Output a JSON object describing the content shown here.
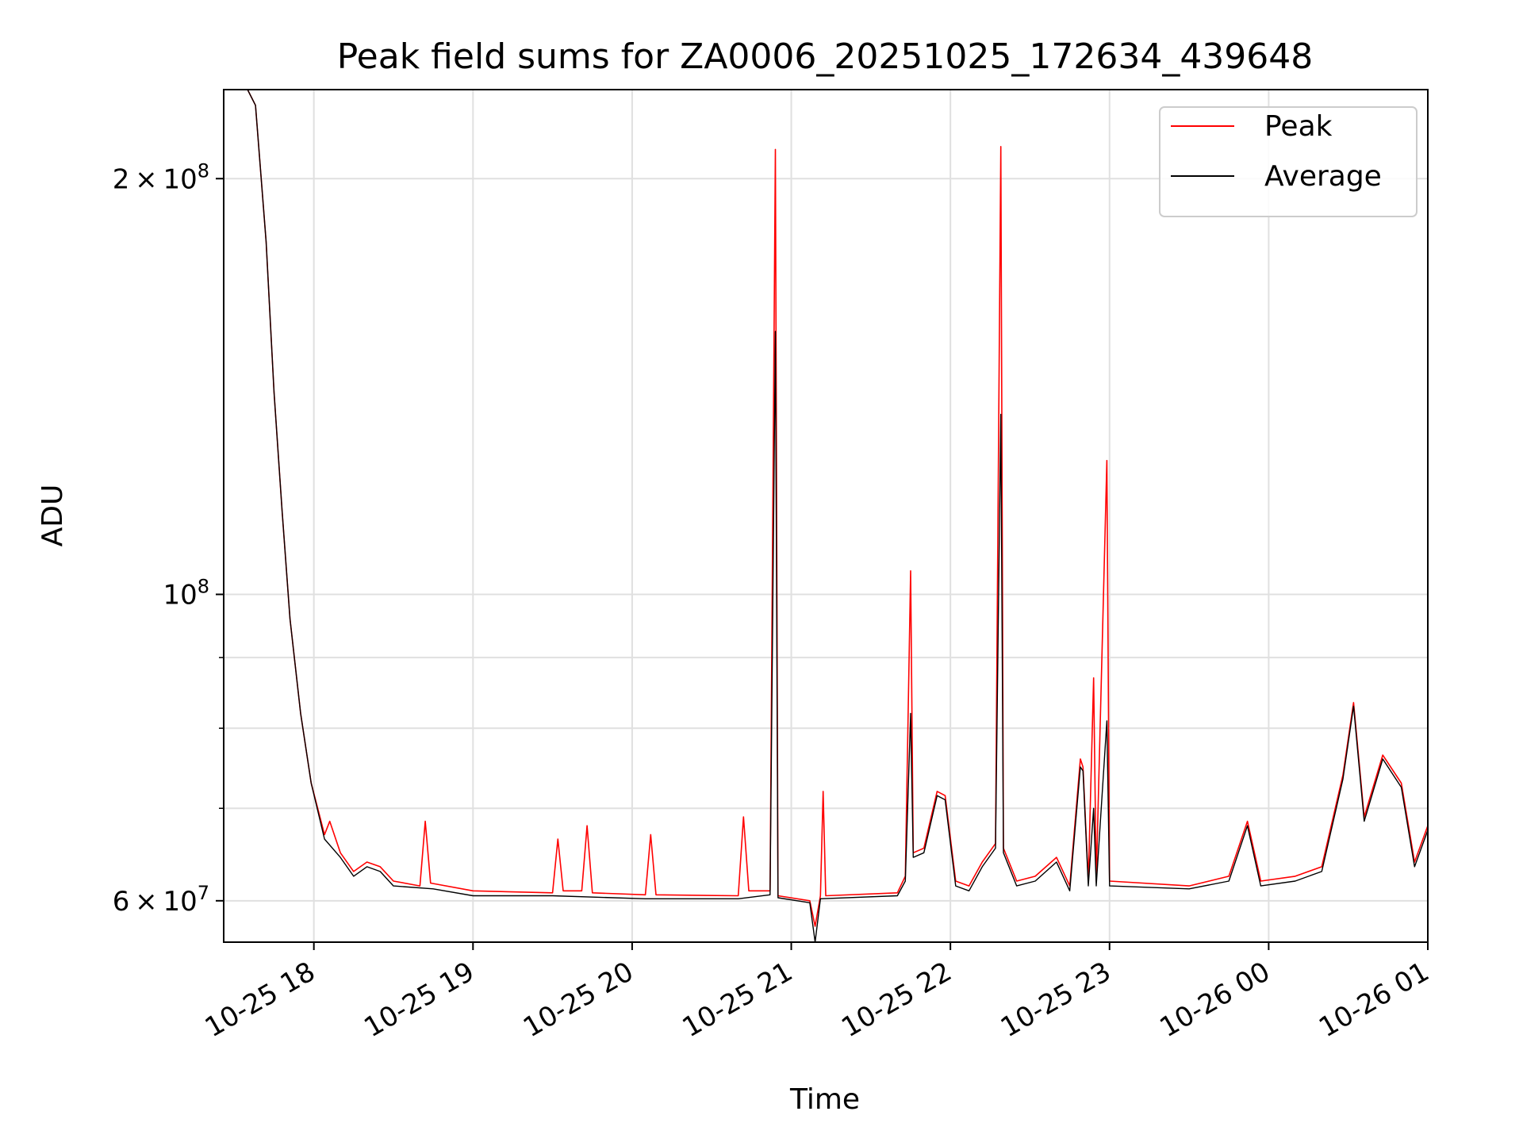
{
  "chart_data": {
    "type": "line",
    "title": "Peak field sums for ZA0006_20251025_172634_439648",
    "xlabel": "Time",
    "ylabel": "ADU",
    "yscale": "log",
    "xlim": [
      "2025-10-25 17:26",
      "2025-10-26 01:00"
    ],
    "ylim": [
      56000000,
      232000000
    ],
    "x_ticks": [
      {
        "t": "2025-10-25 18:00",
        "label": "10-25 18"
      },
      {
        "t": "2025-10-25 19:00",
        "label": "10-25 19"
      },
      {
        "t": "2025-10-25 20:00",
        "label": "10-25 20"
      },
      {
        "t": "2025-10-25 21:00",
        "label": "10-25 21"
      },
      {
        "t": "2025-10-25 22:00",
        "label": "10-25 22"
      },
      {
        "t": "2025-10-25 23:00",
        "label": "10-25 23"
      },
      {
        "t": "2025-10-26 00:00",
        "label": "10-26 00"
      },
      {
        "t": "2025-10-26 01:00",
        "label": "10-26 01"
      }
    ],
    "y_major_ticks": [
      {
        "value": 60000000,
        "base": "6",
        "exp": "7"
      },
      {
        "value": 100000000,
        "base": "",
        "exp": "8"
      },
      {
        "value": 200000000,
        "base": "2",
        "exp": "8"
      }
    ],
    "y_minor_ticks": [
      70000000,
      80000000,
      90000000
    ],
    "grid": true,
    "legend_position": "top-right",
    "series": [
      {
        "name": "Peak",
        "color": "#ff0000",
        "points": [
          [
            "2025-10-25 17:26",
            232000000
          ],
          [
            "2025-10-25 17:35",
            232000000
          ],
          [
            "2025-10-25 17:38",
            226000000
          ],
          [
            "2025-10-25 17:42",
            180000000
          ],
          [
            "2025-10-25 17:45",
            140000000
          ],
          [
            "2025-10-25 17:48",
            115000000
          ],
          [
            "2025-10-25 17:51",
            96000000
          ],
          [
            "2025-10-25 17:55",
            82000000
          ],
          [
            "2025-10-25 17:59",
            73000000
          ],
          [
            "2025-10-25 18:04",
            67000000
          ],
          [
            "2025-10-25 18:06",
            68500000
          ],
          [
            "2025-10-25 18:10",
            65000000
          ],
          [
            "2025-10-25 18:15",
            63000000
          ],
          [
            "2025-10-25 18:20",
            64000000
          ],
          [
            "2025-10-25 18:25",
            63500000
          ],
          [
            "2025-10-25 18:30",
            62000000
          ],
          [
            "2025-10-25 18:40",
            61500000
          ],
          [
            "2025-10-25 18:42",
            68500000
          ],
          [
            "2025-10-25 18:44",
            61800000
          ],
          [
            "2025-10-25 19:00",
            61000000
          ],
          [
            "2025-10-25 19:30",
            60800000
          ],
          [
            "2025-10-25 19:32",
            66500000
          ],
          [
            "2025-10-25 19:34",
            61000000
          ],
          [
            "2025-10-25 19:41",
            61000000
          ],
          [
            "2025-10-25 19:43",
            68000000
          ],
          [
            "2025-10-25 19:45",
            60800000
          ],
          [
            "2025-10-25 20:05",
            60600000
          ],
          [
            "2025-10-25 20:07",
            67000000
          ],
          [
            "2025-10-25 20:09",
            60600000
          ],
          [
            "2025-10-25 20:40",
            60500000
          ],
          [
            "2025-10-25 20:42",
            69000000
          ],
          [
            "2025-10-25 20:44",
            61000000
          ],
          [
            "2025-10-25 20:52",
            61000000
          ],
          [
            "2025-10-25 20:54",
            210000000
          ],
          [
            "2025-10-25 20:55",
            60500000
          ],
          [
            "2025-10-25 21:07",
            60000000
          ],
          [
            "2025-10-25 21:09",
            57500000
          ],
          [
            "2025-10-25 21:11",
            60500000
          ],
          [
            "2025-10-25 21:12",
            72000000
          ],
          [
            "2025-10-25 21:13",
            60500000
          ],
          [
            "2025-10-25 21:40",
            60800000
          ],
          [
            "2025-10-25 21:43",
            62500000
          ],
          [
            "2025-10-25 21:45",
            104000000
          ],
          [
            "2025-10-25 21:46",
            65000000
          ],
          [
            "2025-10-25 21:50",
            65500000
          ],
          [
            "2025-10-25 21:55",
            72000000
          ],
          [
            "2025-10-25 21:58",
            71500000
          ],
          [
            "2025-10-25 22:02",
            62000000
          ],
          [
            "2025-10-25 22:07",
            61500000
          ],
          [
            "2025-10-25 22:12",
            64000000
          ],
          [
            "2025-10-25 22:17",
            66000000
          ],
          [
            "2025-10-25 22:19",
            211000000
          ],
          [
            "2025-10-25 22:20",
            65500000
          ],
          [
            "2025-10-25 22:25",
            62000000
          ],
          [
            "2025-10-25 22:32",
            62500000
          ],
          [
            "2025-10-25 22:40",
            64500000
          ],
          [
            "2025-10-25 22:45",
            61500000
          ],
          [
            "2025-10-25 22:49",
            76000000
          ],
          [
            "2025-10-25 22:50",
            75000000
          ],
          [
            "2025-10-25 22:52",
            62000000
          ],
          [
            "2025-10-25 22:54",
            87000000
          ],
          [
            "2025-10-25 22:55",
            62000000
          ],
          [
            "2025-10-25 22:59",
            125000000
          ],
          [
            "2025-10-25 23:00",
            62000000
          ],
          [
            "2025-10-25 23:30",
            61500000
          ],
          [
            "2025-10-25 23:45",
            62500000
          ],
          [
            "2025-10-25 23:52",
            68500000
          ],
          [
            "2025-10-25 23:57",
            62000000
          ],
          [
            "2025-10-26 00:10",
            62500000
          ],
          [
            "2025-10-26 00:20",
            63500000
          ],
          [
            "2025-10-26 00:28",
            74000000
          ],
          [
            "2025-10-26 00:32",
            83500000
          ],
          [
            "2025-10-26 00:36",
            69000000
          ],
          [
            "2025-10-26 00:43",
            76500000
          ],
          [
            "2025-10-26 00:50",
            73000000
          ],
          [
            "2025-10-26 00:55",
            64000000
          ],
          [
            "2025-10-26 01:00",
            68000000
          ]
        ]
      },
      {
        "name": "Average",
        "color": "#000000",
        "points": [
          [
            "2025-10-25 17:26",
            232000000
          ],
          [
            "2025-10-25 17:35",
            232000000
          ],
          [
            "2025-10-25 17:38",
            226000000
          ],
          [
            "2025-10-25 17:42",
            180000000
          ],
          [
            "2025-10-25 17:45",
            140000000
          ],
          [
            "2025-10-25 17:48",
            115000000
          ],
          [
            "2025-10-25 17:51",
            96000000
          ],
          [
            "2025-10-25 17:55",
            82000000
          ],
          [
            "2025-10-25 17:59",
            73000000
          ],
          [
            "2025-10-25 18:04",
            66500000
          ],
          [
            "2025-10-25 18:10",
            64500000
          ],
          [
            "2025-10-25 18:15",
            62500000
          ],
          [
            "2025-10-25 18:20",
            63500000
          ],
          [
            "2025-10-25 18:25",
            63000000
          ],
          [
            "2025-10-25 18:30",
            61500000
          ],
          [
            "2025-10-25 18:45",
            61200000
          ],
          [
            "2025-10-25 19:00",
            60500000
          ],
          [
            "2025-10-25 19:30",
            60500000
          ],
          [
            "2025-10-25 20:05",
            60200000
          ],
          [
            "2025-10-25 20:40",
            60200000
          ],
          [
            "2025-10-25 20:52",
            60600000
          ],
          [
            "2025-10-25 20:54",
            155000000
          ],
          [
            "2025-10-25 20:55",
            60300000
          ],
          [
            "2025-10-25 21:07",
            59800000
          ],
          [
            "2025-10-25 21:09",
            56000000
          ],
          [
            "2025-10-25 21:11",
            60200000
          ],
          [
            "2025-10-25 21:40",
            60500000
          ],
          [
            "2025-10-25 21:43",
            62000000
          ],
          [
            "2025-10-25 21:45",
            82000000
          ],
          [
            "2025-10-25 21:46",
            64500000
          ],
          [
            "2025-10-25 21:50",
            65000000
          ],
          [
            "2025-10-25 21:55",
            71500000
          ],
          [
            "2025-10-25 21:58",
            71000000
          ],
          [
            "2025-10-25 22:02",
            61500000
          ],
          [
            "2025-10-25 22:07",
            61000000
          ],
          [
            "2025-10-25 22:12",
            63500000
          ],
          [
            "2025-10-25 22:17",
            65500000
          ],
          [
            "2025-10-25 22:19",
            135000000
          ],
          [
            "2025-10-25 22:20",
            65000000
          ],
          [
            "2025-10-25 22:25",
            61500000
          ],
          [
            "2025-10-25 22:32",
            62000000
          ],
          [
            "2025-10-25 22:40",
            64000000
          ],
          [
            "2025-10-25 22:45",
            61000000
          ],
          [
            "2025-10-25 22:49",
            75000000
          ],
          [
            "2025-10-25 22:50",
            74500000
          ],
          [
            "2025-10-25 22:52",
            61500000
          ],
          [
            "2025-10-25 22:54",
            70000000
          ],
          [
            "2025-10-25 22:55",
            61500000
          ],
          [
            "2025-10-25 22:59",
            81000000
          ],
          [
            "2025-10-25 23:00",
            61500000
          ],
          [
            "2025-10-25 23:30",
            61200000
          ],
          [
            "2025-10-25 23:45",
            62000000
          ],
          [
            "2025-10-25 23:52",
            68000000
          ],
          [
            "2025-10-25 23:57",
            61500000
          ],
          [
            "2025-10-26 00:10",
            62000000
          ],
          [
            "2025-10-26 00:20",
            63000000
          ],
          [
            "2025-10-26 00:28",
            73500000
          ],
          [
            "2025-10-26 00:32",
            83000000
          ],
          [
            "2025-10-26 00:36",
            68500000
          ],
          [
            "2025-10-26 00:43",
            76000000
          ],
          [
            "2025-10-26 00:50",
            72500000
          ],
          [
            "2025-10-26 00:55",
            63500000
          ],
          [
            "2025-10-26 01:00",
            67500000
          ]
        ]
      }
    ]
  }
}
